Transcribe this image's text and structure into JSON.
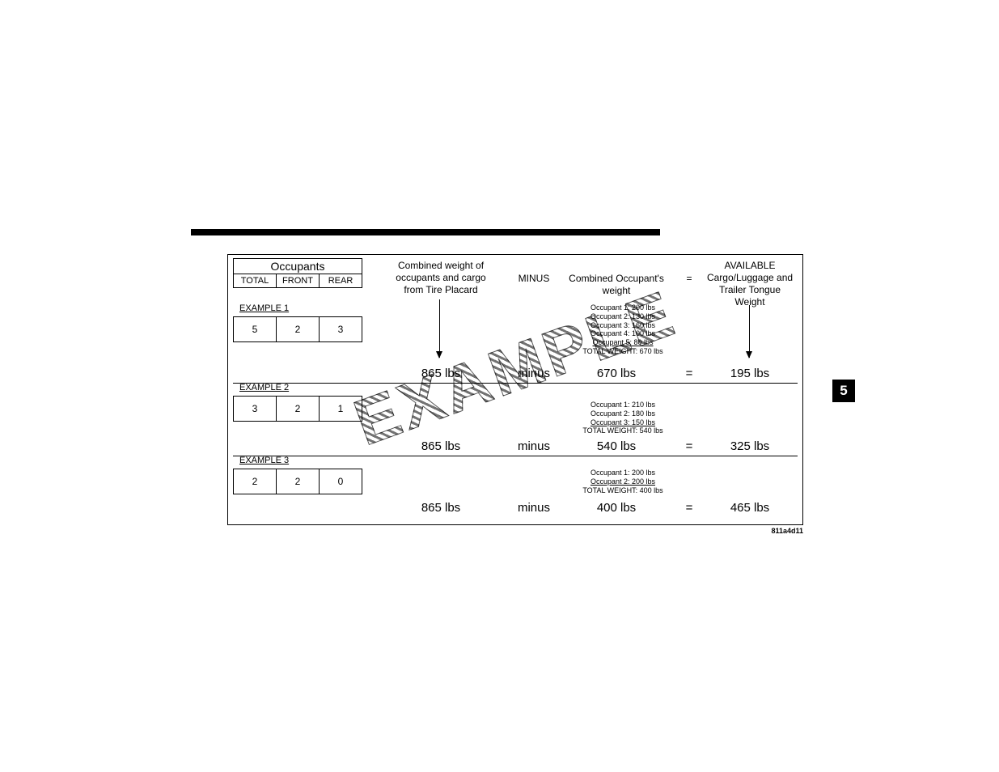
{
  "page_tab": "5",
  "caption": "811a4d11",
  "watermark": "EXAMPLE",
  "header": {
    "occupants_title": "Occupants",
    "col_total": "TOTAL",
    "col_front": "FRONT",
    "col_rear": "REAR",
    "combined_weight": "Combined weight of\noccupants and cargo\nfrom Tire Placard",
    "minus": "MINUS",
    "combined_occupant_weight": "Combined Occupant's\nweight",
    "equals": "=",
    "available": "AVAILABLE\nCargo/Luggage and\nTrailer Tongue\nWeight"
  },
  "examples": [
    {
      "label": "EXAMPLE 1",
      "occupants": {
        "total": "5",
        "front": "2",
        "rear": "3"
      },
      "detail_lines": [
        "Occupant 1: 200 lbs",
        "Occupant 2: 130 lbs",
        "Occupant 3: 160 lbs",
        "Occupant 4: 100 lbs"
      ],
      "detail_last": "Occupant 5:  80 lbs",
      "detail_total": "TOTAL WEIGHT: 670 lbs",
      "placard": "865 lbs",
      "minus": "minus",
      "occ_weight": "670 lbs",
      "equals": "=",
      "available": "195 lbs"
    },
    {
      "label": "EXAMPLE 2",
      "occupants": {
        "total": "3",
        "front": "2",
        "rear": "1"
      },
      "detail_lines": [
        "Occupant 1: 210 lbs",
        "Occupant 2: 180 lbs"
      ],
      "detail_last": "Occupant 3: 150 lbs",
      "detail_total": "TOTAL WEIGHT: 540 lbs",
      "placard": "865 lbs",
      "minus": "minus",
      "occ_weight": "540 lbs",
      "equals": "=",
      "available": "325 lbs"
    },
    {
      "label": "EXAMPLE 3",
      "occupants": {
        "total": "2",
        "front": "2",
        "rear": "0"
      },
      "detail_lines": [
        "Occupant 1: 200 lbs"
      ],
      "detail_last": "Occupant 2: 200 lbs",
      "detail_total": "TOTAL WEIGHT: 400 lbs",
      "placard": "865 lbs",
      "minus": "minus",
      "occ_weight": "400 lbs",
      "equals": "=",
      "available": "465 lbs"
    }
  ],
  "layout": {
    "section_tops": [
      60,
      158,
      248
    ],
    "detail_tops": [
      0,
      22,
      16
    ],
    "value_tops": [
      78,
      70,
      56
    ],
    "separator_tops": [
      158,
      248
    ]
  }
}
